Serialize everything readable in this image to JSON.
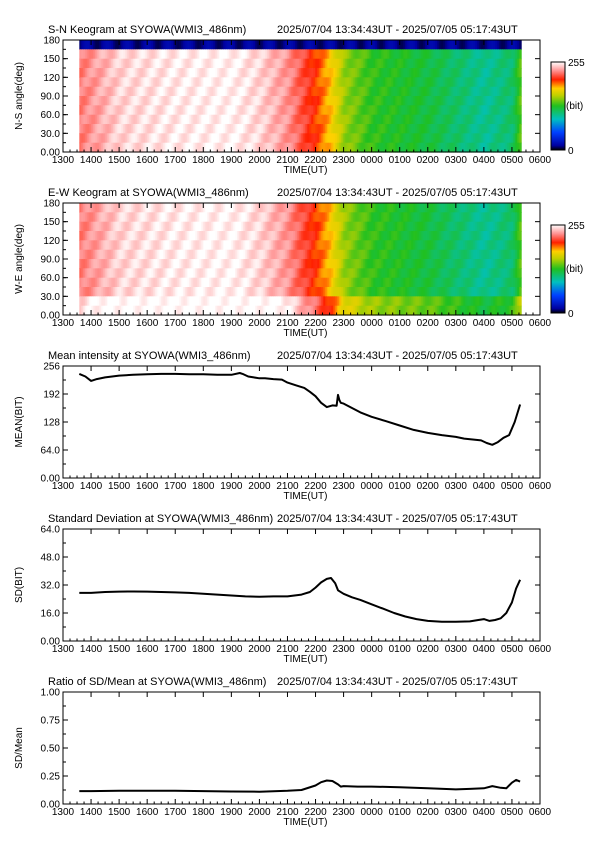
{
  "panels": [
    {
      "kind": "keogram",
      "title": "S-N Keogram at SYOWA(WMI3_486nm)",
      "time_range": "2025/07/04 13:34:43UT - 2025/07/05 05:17:43UT",
      "ylabel": "N-S angle(deg)",
      "yticks": [
        "0.00",
        "30.0",
        "60.0",
        "90.0",
        "120",
        "150",
        "180"
      ],
      "xlabel": "TIME(UT)",
      "colorbar": {
        "max": "255",
        "unit": "(bit)",
        "min": "0"
      }
    },
    {
      "kind": "keogram",
      "title": "E-W Keogram at SYOWA(WMI3_486nm)",
      "time_range": "2025/07/04 13:34:43UT - 2025/07/05 05:17:43UT",
      "ylabel": "W-E angle(deg)",
      "yticks": [
        "0.00",
        "30.0",
        "60.0",
        "90.0",
        "120",
        "150",
        "180"
      ],
      "xlabel": "TIME(UT)",
      "colorbar": {
        "max": "255",
        "unit": "(bit)",
        "min": "0"
      }
    },
    {
      "kind": "line",
      "title": "Mean intensity at SYOWA(WMI3_486nm)",
      "time_range": "2025/07/04 13:34:43UT - 2025/07/05 05:17:43UT",
      "ylabel": "MEAN(BIT)",
      "yticks": [
        "0.00",
        "64.0",
        "128",
        "192",
        "256"
      ],
      "xlabel": "TIME(UT)"
    },
    {
      "kind": "line",
      "title": "Standard Deviation at SYOWA(WMI3_486nm)",
      "time_range": "2025/07/04 13:34:43UT - 2025/07/05 05:17:43UT",
      "ylabel": "SD(BIT)",
      "yticks": [
        "0.00",
        "16.0",
        "32.0",
        "48.0",
        "64.0"
      ],
      "xlabel": "TIME(UT)"
    },
    {
      "kind": "line",
      "title": "Ratio of SD/Mean at SYOWA(WMI3_486nm)",
      "time_range": "2025/07/04 13:34:43UT - 2025/07/05 05:17:43UT",
      "ylabel": "SD/Mean",
      "yticks": [
        "0.00",
        "0.25",
        "0.50",
        "0.75",
        "1.00"
      ],
      "xlabel": "TIME(UT)"
    }
  ],
  "xticks": [
    "1300",
    "1400",
    "1500",
    "1600",
    "1700",
    "1800",
    "1900",
    "2000",
    "2100",
    "2200",
    "2300",
    "0000",
    "0100",
    "0200",
    "0300",
    "0400",
    "0500",
    "0600"
  ],
  "colors": {
    "keogram_bright": "#ffffff",
    "keogram_high": "#e8000a",
    "keogram_mid": "#23c423",
    "keogram_low": "#0018c8",
    "trace": "#000000"
  },
  "chart_data": [
    {
      "type": "heatmap",
      "title": "S-N Keogram at SYOWA(WMI3_486nm)",
      "xlabel": "TIME(UT)",
      "ylabel": "N-S angle(deg)",
      "xlim": [
        13.0,
        30.0
      ],
      "ylim": [
        0,
        180
      ],
      "zlim": [
        0,
        255
      ],
      "x_start": 13.58,
      "x_end": 29.29,
      "description_levels": {
        "hours": [
          13.6,
          15,
          17,
          19,
          20,
          21,
          22,
          22.5,
          23,
          24,
          25,
          26,
          27,
          28,
          29,
          29.3
        ],
        "level": [
          225,
          245,
          250,
          252,
          245,
          230,
          200,
          180,
          150,
          130,
          125,
          120,
          110,
          100,
          110,
          140
        ]
      }
    },
    {
      "type": "heatmap",
      "title": "E-W Keogram at SYOWA(WMI3_486nm)",
      "xlabel": "TIME(UT)",
      "ylabel": "W-E angle(deg)",
      "xlim": [
        13.0,
        30.0
      ],
      "ylim": [
        0,
        180
      ],
      "zlim": [
        0,
        255
      ],
      "x_start": 13.58,
      "x_end": 29.29,
      "description_levels": {
        "hours": [
          13.6,
          15,
          17,
          19,
          20,
          21,
          22,
          22.5,
          23,
          24,
          25,
          26,
          27,
          28,
          29,
          29.3
        ],
        "level": [
          225,
          245,
          250,
          252,
          245,
          230,
          200,
          180,
          150,
          130,
          125,
          120,
          110,
          100,
          110,
          140
        ]
      }
    },
    {
      "type": "line",
      "title": "Mean intensity at SYOWA(WMI3_486nm)",
      "xlabel": "TIME(UT)",
      "ylabel": "MEAN(BIT)",
      "xlim": [
        13.0,
        30.0
      ],
      "ylim": [
        0,
        256
      ],
      "x": [
        13.58,
        13.8,
        14.0,
        14.2,
        14.5,
        15.0,
        15.5,
        16.0,
        16.5,
        17.0,
        17.5,
        18.0,
        18.5,
        19.0,
        19.3,
        19.4,
        19.6,
        19.8,
        20.0,
        20.2,
        20.5,
        20.8,
        21.0,
        21.3,
        21.6,
        21.8,
        22.0,
        22.2,
        22.4,
        22.6,
        22.75,
        22.8,
        22.85,
        22.9,
        23.0,
        23.3,
        23.6,
        24.0,
        24.5,
        25.0,
        25.5,
        26.0,
        26.5,
        27.0,
        27.3,
        27.6,
        27.9,
        28.1,
        28.3,
        28.5,
        28.7,
        28.9,
        29.1,
        29.29
      ],
      "series": [
        {
          "values": [
            238,
            232,
            222,
            226,
            230,
            234,
            236,
            237,
            238,
            238,
            237,
            237,
            236,
            236,
            240,
            238,
            232,
            230,
            228,
            228,
            226,
            225,
            218,
            212,
            206,
            197,
            187,
            172,
            162,
            166,
            165,
            190,
            178,
            172,
            170,
            160,
            150,
            140,
            130,
            120,
            110,
            103,
            98,
            94,
            90,
            88,
            86,
            80,
            76,
            82,
            92,
            98,
            128,
            168
          ]
        }
      ]
    },
    {
      "type": "line",
      "title": "Standard Deviation at SYOWA(WMI3_486nm)",
      "xlabel": "TIME(UT)",
      "ylabel": "SD(BIT)",
      "xlim": [
        13.0,
        30.0
      ],
      "ylim": [
        0,
        64
      ],
      "x": [
        13.58,
        14.0,
        14.5,
        15.0,
        15.5,
        16.0,
        16.5,
        17.0,
        17.5,
        18.0,
        18.5,
        19.0,
        19.5,
        20.0,
        20.5,
        21.0,
        21.5,
        21.8,
        22.0,
        22.2,
        22.4,
        22.55,
        22.7,
        22.8,
        23.0,
        23.3,
        23.6,
        24.0,
        24.4,
        24.8,
        25.2,
        25.6,
        26.0,
        26.5,
        27.0,
        27.5,
        27.8,
        28.0,
        28.2,
        28.4,
        28.6,
        28.8,
        29.0,
        29.15,
        29.29
      ],
      "series": [
        {
          "values": [
            27.5,
            27.5,
            28,
            28.2,
            28.3,
            28.2,
            28,
            27.8,
            27.5,
            27,
            26.5,
            26,
            25.5,
            25.3,
            25.5,
            25.5,
            26.5,
            28,
            30.5,
            33.5,
            35.5,
            36,
            33,
            29,
            27,
            25,
            23.5,
            21,
            18.5,
            16,
            14,
            12.5,
            11.5,
            11,
            11,
            11.2,
            12,
            12.5,
            11.5,
            12,
            13,
            16,
            22,
            30,
            35
          ]
        }
      ]
    },
    {
      "type": "line",
      "title": "Ratio of SD/Mean at SYOWA(WMI3_486nm)",
      "xlabel": "TIME(UT)",
      "ylabel": "SD/Mean",
      "xlim": [
        13.0,
        30.0
      ],
      "ylim": [
        0,
        1
      ],
      "x": [
        13.58,
        14.0,
        15.0,
        16.0,
        17.0,
        18.0,
        19.0,
        20.0,
        21.0,
        21.5,
        22.0,
        22.2,
        22.4,
        22.6,
        22.8,
        22.9,
        23.0,
        23.5,
        24.0,
        25.0,
        26.0,
        27.0,
        27.5,
        28.0,
        28.3,
        28.6,
        28.8,
        29.0,
        29.15,
        29.29
      ],
      "series": [
        {
          "values": [
            0.115,
            0.115,
            0.118,
            0.118,
            0.118,
            0.115,
            0.112,
            0.11,
            0.118,
            0.125,
            0.165,
            0.195,
            0.21,
            0.205,
            0.175,
            0.155,
            0.16,
            0.155,
            0.155,
            0.15,
            0.14,
            0.13,
            0.135,
            0.14,
            0.16,
            0.145,
            0.14,
            0.19,
            0.215,
            0.2
          ]
        }
      ]
    }
  ]
}
